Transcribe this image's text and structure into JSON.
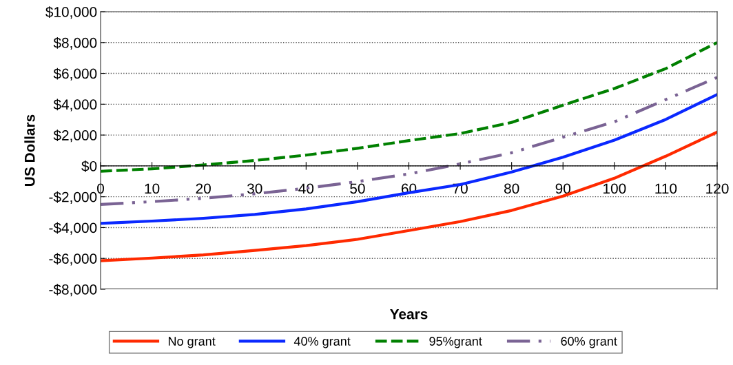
{
  "chart_data": {
    "type": "line",
    "xlabel": "Years",
    "ylabel": "US Dollars",
    "x": [
      0,
      10,
      20,
      30,
      40,
      50,
      60,
      70,
      80,
      90,
      100,
      110,
      120
    ],
    "series": [
      {
        "name": "No grant",
        "color": "#ff2a00",
        "line_style": "solid",
        "values": [
          -6150,
          -5980,
          -5770,
          -5480,
          -5170,
          -4760,
          -4190,
          -3610,
          -2890,
          -1960,
          -800,
          630,
          2190
        ]
      },
      {
        "name": "40% grant",
        "color": "#0a28ff",
        "line_style": "solid",
        "values": [
          -3730,
          -3580,
          -3400,
          -3150,
          -2790,
          -2320,
          -1740,
          -1210,
          -400,
          560,
          1670,
          3010,
          4630
        ]
      },
      {
        "name": "95%grant",
        "color": "#008000",
        "line_style": "dashed",
        "values": [
          -350,
          -190,
          60,
          350,
          700,
          1140,
          1640,
          2100,
          2820,
          3940,
          5020,
          6310,
          8000
        ]
      },
      {
        "name": "60% grant",
        "color": "#7a6394",
        "line_style": "dashdotdot",
        "values": [
          -2500,
          -2320,
          -2100,
          -1810,
          -1450,
          -1020,
          -520,
          130,
          850,
          1860,
          2860,
          4300,
          5740
        ]
      }
    ],
    "xlim": [
      0,
      120
    ],
    "xticks": [
      0,
      10,
      20,
      30,
      40,
      50,
      60,
      70,
      80,
      90,
      100,
      110,
      120
    ],
    "ylim": [
      -8000,
      10000
    ],
    "yticks": [
      {
        "value": -8000,
        "label": "-$8,000"
      },
      {
        "value": -6000,
        "label": "-$6,000"
      },
      {
        "value": -4000,
        "label": "-$4,000"
      },
      {
        "value": -2000,
        "label": "-$2,000"
      },
      {
        "value": 0,
        "label": "$0"
      },
      {
        "value": 2000,
        "label": "$2,000"
      },
      {
        "value": 4000,
        "label": "$4,000"
      },
      {
        "value": 6000,
        "label": "$6,000"
      },
      {
        "value": 8000,
        "label": "$8,000"
      },
      {
        "value": 10000,
        "label": "$10,000"
      }
    ],
    "grid": "y",
    "legend": "bottom",
    "marker": "none"
  }
}
